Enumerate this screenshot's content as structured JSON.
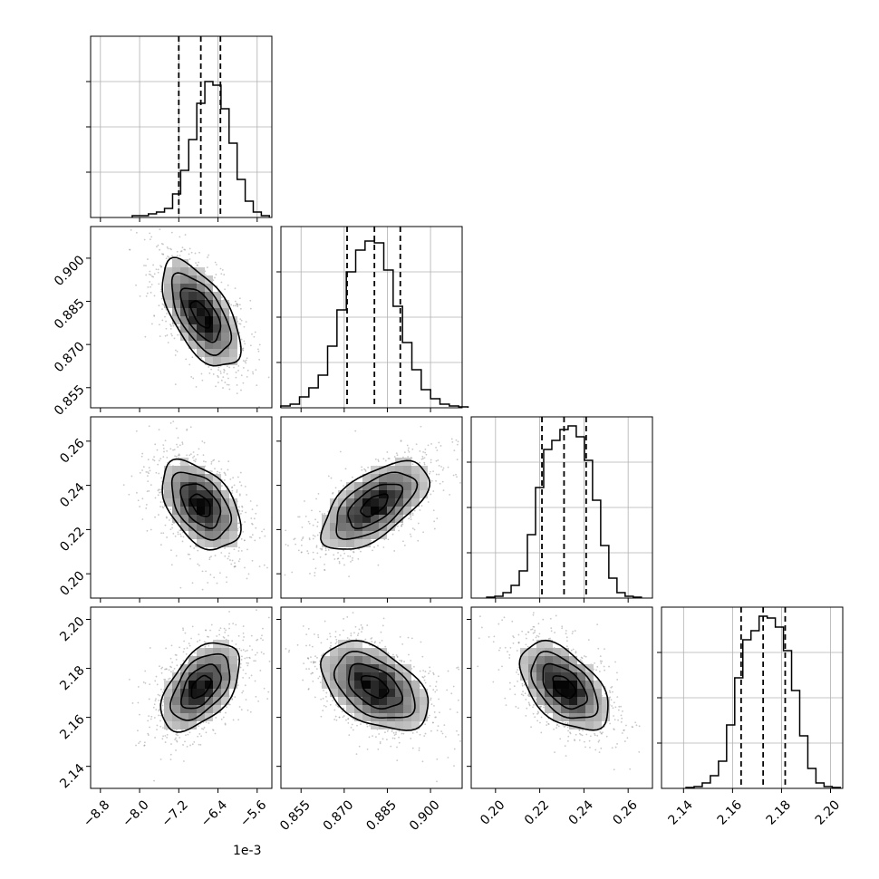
{
  "chart_data": {
    "type": "corner",
    "n_params": 4,
    "axis_offset_label": "1e-3",
    "grid": true,
    "params": [
      {
        "range": [
          -9.0,
          -5.3
        ],
        "ticks": [
          -8.8,
          -8.0,
          -7.2,
          -6.4,
          -5.6
        ],
        "tick_labels": [
          "−8.8",
          "−8.0",
          "−7.2",
          "−6.4",
          "−5.6"
        ],
        "quantiles": [
          -7.2,
          -6.75,
          -6.35
        ],
        "mean": -6.75,
        "sd": 0.4
      },
      {
        "range": [
          0.848,
          0.911
        ],
        "ticks": [
          0.855,
          0.87,
          0.885,
          0.9
        ],
        "tick_labels": [
          "0.855",
          "0.870",
          "0.885",
          "0.900"
        ],
        "quantiles": [
          0.871,
          0.8805,
          0.8895
        ],
        "mean": 0.8805,
        "sd": 0.0093
      },
      {
        "range": [
          0.189,
          0.271
        ],
        "ticks": [
          0.2,
          0.22,
          0.24,
          0.26
        ],
        "tick_labels": [
          "0.20",
          "0.22",
          "0.24",
          "0.26"
        ],
        "quantiles": [
          0.221,
          0.231,
          0.241
        ],
        "mean": 0.231,
        "sd": 0.01
      },
      {
        "range": [
          2.131,
          2.205
        ],
        "ticks": [
          2.14,
          2.16,
          2.18,
          2.2
        ],
        "tick_labels": [
          "2.14",
          "2.16",
          "2.18",
          "2.20"
        ],
        "quantiles": [
          2.1635,
          2.1725,
          2.1815
        ],
        "mean": 2.1725,
        "sd": 0.009
      }
    ],
    "histograms": [
      {
        "counts": [
          0.01,
          0.01,
          0.02,
          0.03,
          0.05,
          0.13,
          0.26,
          0.43,
          0.63,
          0.75,
          0.73,
          0.6,
          0.41,
          0.21,
          0.09,
          0.03,
          0.01
        ]
      },
      {
        "counts": [
          0.01,
          0.02,
          0.06,
          0.11,
          0.18,
          0.34,
          0.54,
          0.75,
          0.87,
          0.92,
          0.91,
          0.76,
          0.56,
          0.36,
          0.21,
          0.1,
          0.05,
          0.02,
          0.01,
          0.005
        ]
      },
      {
        "counts": [
          0.005,
          0.01,
          0.03,
          0.07,
          0.15,
          0.35,
          0.61,
          0.82,
          0.87,
          0.93,
          0.95,
          0.89,
          0.76,
          0.54,
          0.29,
          0.11,
          0.03,
          0.01,
          0.005
        ]
      },
      {
        "counts": [
          0.005,
          0.01,
          0.03,
          0.07,
          0.15,
          0.35,
          0.61,
          0.82,
          0.87,
          0.95,
          0.94,
          0.89,
          0.76,
          0.54,
          0.29,
          0.11,
          0.03,
          0.01,
          0.005
        ]
      }
    ],
    "correlations": {
      "1-0": -0.6,
      "2-0": -0.45,
      "2-1": 0.6,
      "3-0": 0.5,
      "3-1": -0.45,
      "3-2": -0.5
    },
    "contour_levels_sigma": [
      0.5,
      1.0,
      1.5,
      2.0
    ]
  }
}
